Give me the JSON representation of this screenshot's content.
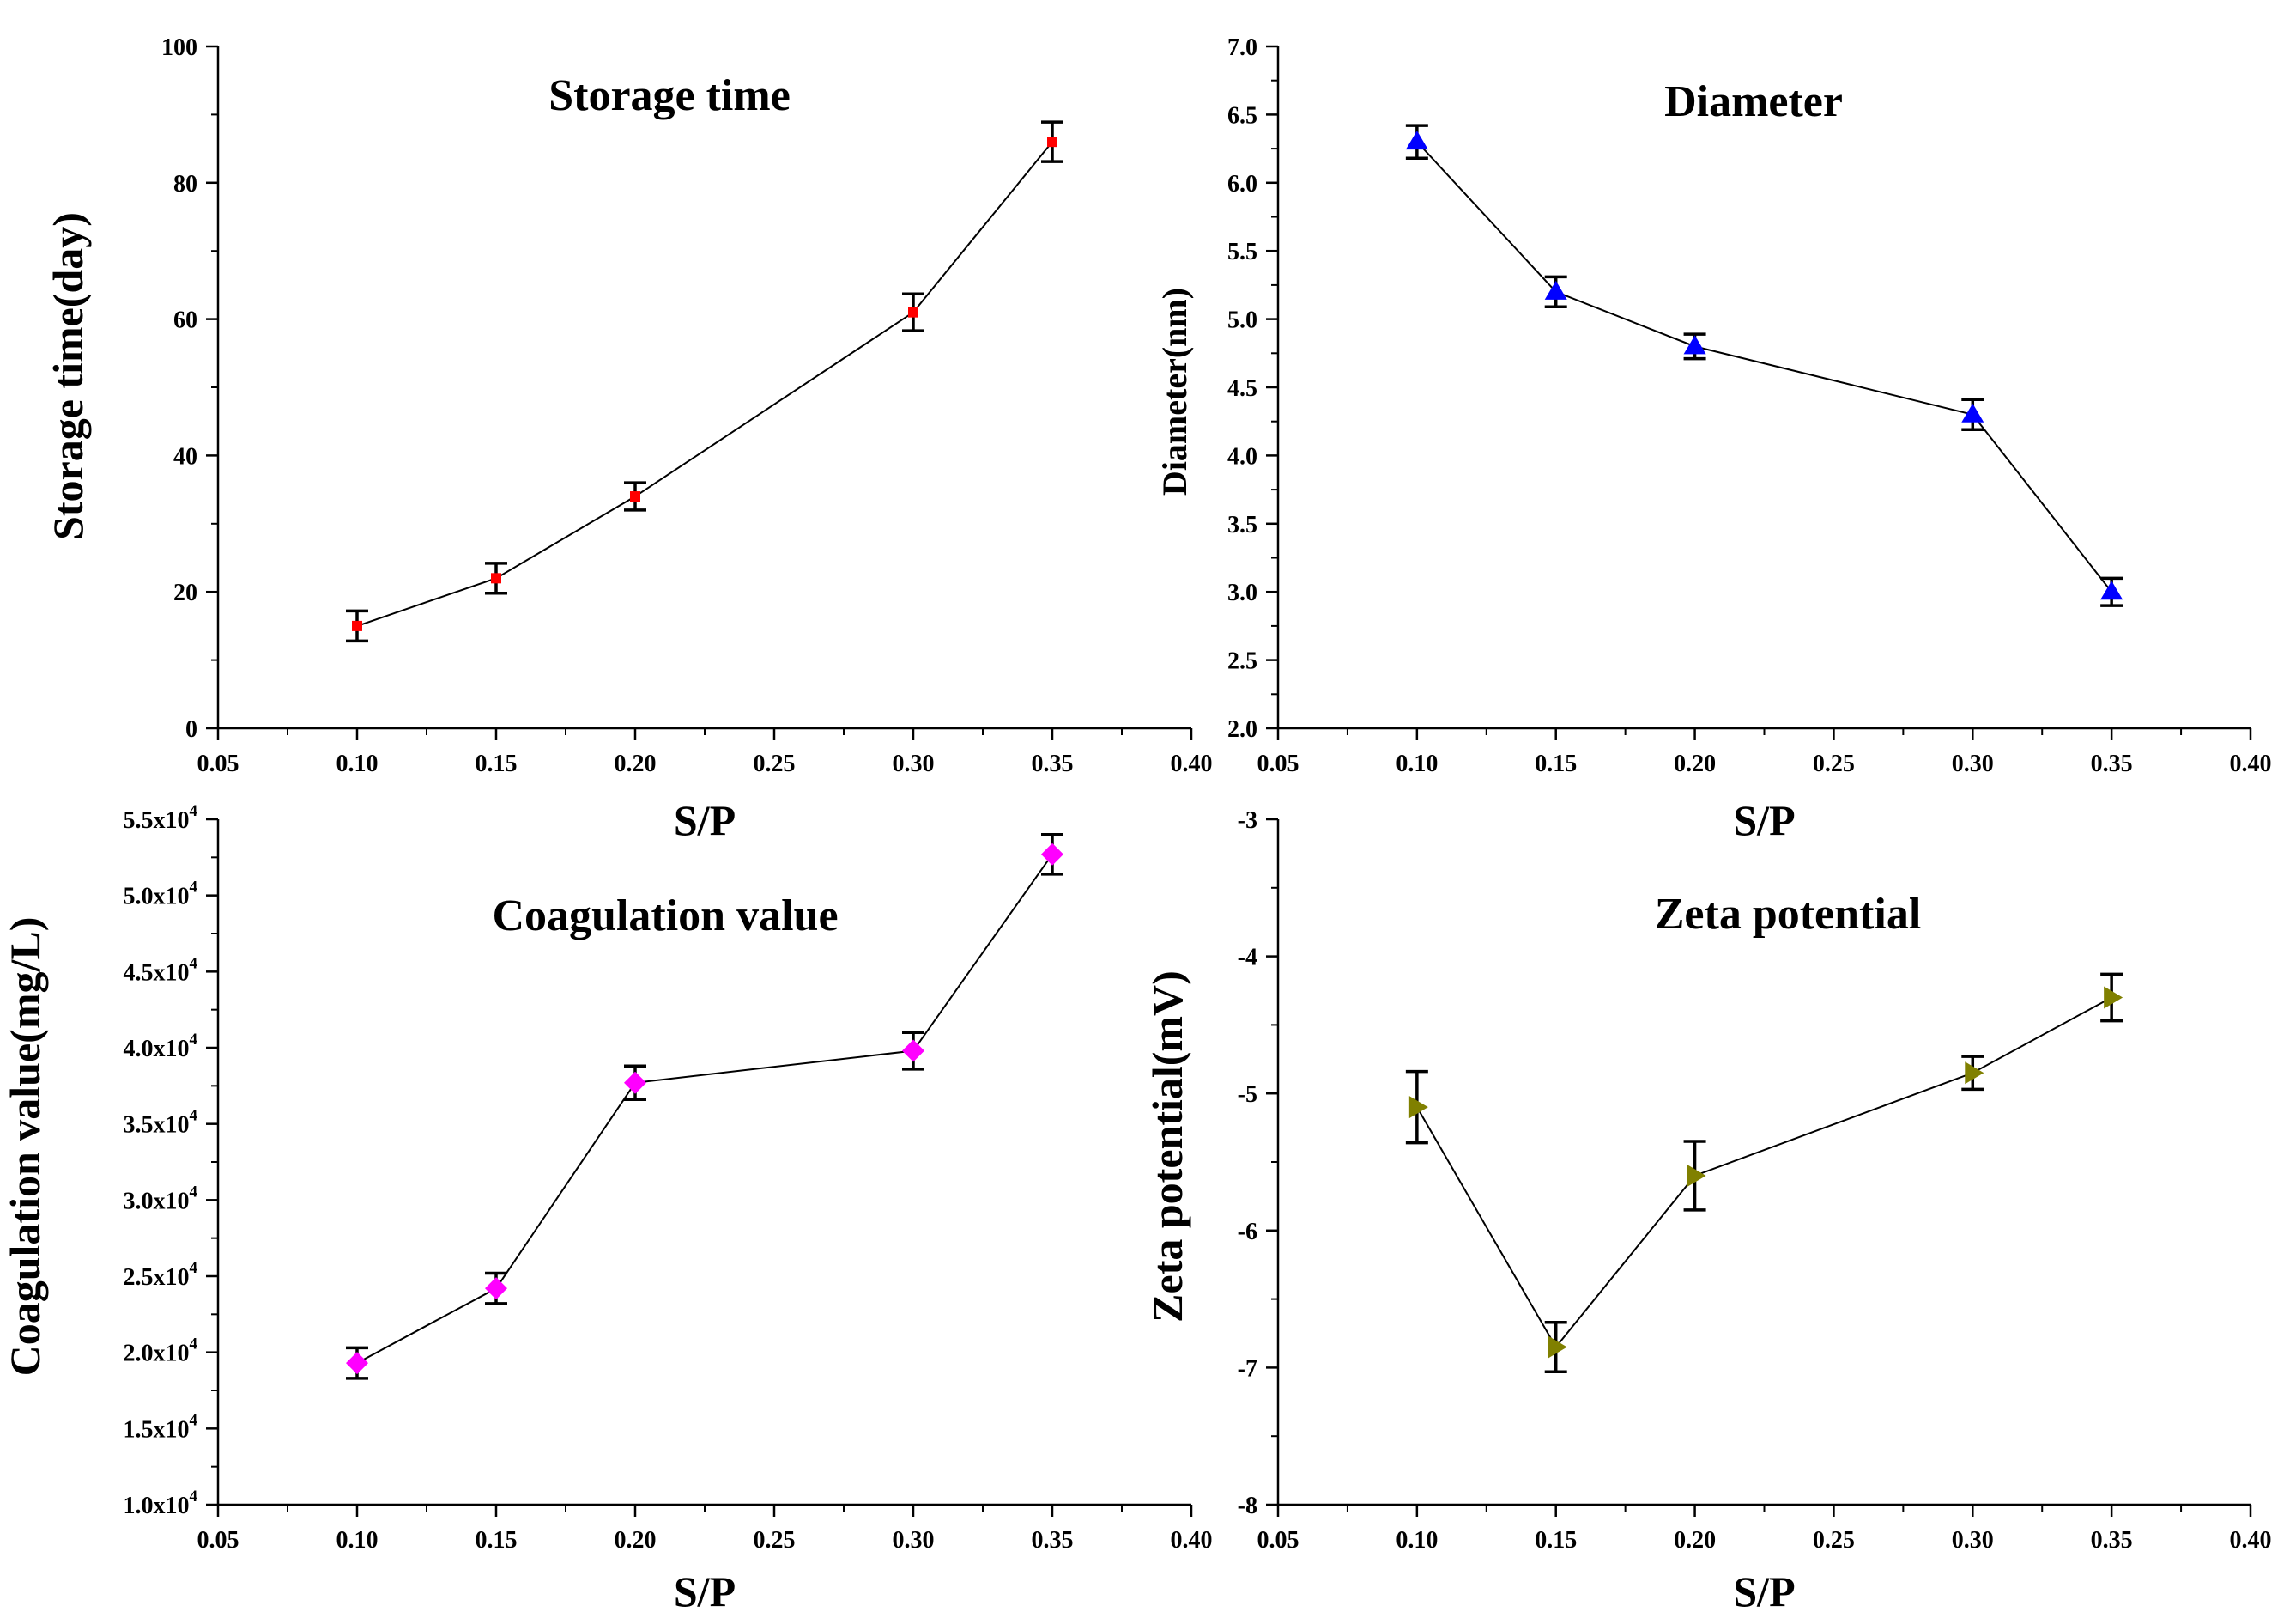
{
  "chart_data": [
    {
      "type": "line",
      "title": "Storage time",
      "xlabel": "S/P",
      "ylabel": "Storage time(day)",
      "xlim": [
        0.05,
        0.4
      ],
      "ylim": [
        0,
        100
      ],
      "xticks": [
        "0.05",
        "0.10",
        "0.15",
        "0.20",
        "0.25",
        "0.30",
        "0.35",
        "0.40"
      ],
      "yticks": [
        "0",
        "20",
        "40",
        "60",
        "80",
        "100"
      ],
      "series": [
        {
          "marker": "square",
          "color": "#ff0000",
          "x": [
            0.1,
            0.15,
            0.2,
            0.3,
            0.35
          ],
          "y": [
            15,
            22,
            34,
            61,
            86
          ],
          "error": [
            2.2,
            2.2,
            2.0,
            2.7,
            2.9
          ]
        }
      ],
      "grid": false
    },
    {
      "type": "line",
      "title": "Diameter",
      "xlabel": "S/P",
      "ylabel": "Diameter(nm)",
      "xlim": [
        0.05,
        0.4
      ],
      "ylim": [
        2.0,
        7.0
      ],
      "xticks": [
        "0.05",
        "0.10",
        "0.15",
        "0.20",
        "0.25",
        "0.30",
        "0.35",
        "0.40"
      ],
      "yticks": [
        "2.0",
        "2.5",
        "3.0",
        "3.5",
        "4.0",
        "4.5",
        "5.0",
        "5.5",
        "6.0",
        "6.5",
        "7.0"
      ],
      "series": [
        {
          "marker": "triangle-up",
          "color": "#0000ff",
          "x": [
            0.1,
            0.15,
            0.2,
            0.3,
            0.35
          ],
          "y": [
            6.3,
            5.2,
            4.8,
            4.3,
            3.0
          ],
          "error": [
            0.12,
            0.11,
            0.09,
            0.11,
            0.1
          ]
        }
      ],
      "grid": false
    },
    {
      "type": "line",
      "title": "Coagulation value",
      "xlabel": "S/P",
      "ylabel": "Coagulation value(mg/L)",
      "xlim": [
        0.05,
        0.4
      ],
      "ylim": [
        10000,
        55000
      ],
      "xticks": [
        "0.05",
        "0.10",
        "0.15",
        "0.20",
        "0.25",
        "0.30",
        "0.35",
        "0.40"
      ],
      "yticks": [
        {
          "mantissa": "1.0x10",
          "exp": "4"
        },
        {
          "mantissa": "1.5x10",
          "exp": "4"
        },
        {
          "mantissa": "2.0x10",
          "exp": "4"
        },
        {
          "mantissa": "2.5x10",
          "exp": "4"
        },
        {
          "mantissa": "3.0x10",
          "exp": "4"
        },
        {
          "mantissa": "3.5x10",
          "exp": "4"
        },
        {
          "mantissa": "4.0x10",
          "exp": "4"
        },
        {
          "mantissa": "4.5x10",
          "exp": "4"
        },
        {
          "mantissa": "5.0x10",
          "exp": "4"
        },
        {
          "mantissa": "5.5x10",
          "exp": "4"
        }
      ],
      "series": [
        {
          "marker": "diamond",
          "color": "#ff00ff",
          "x": [
            0.1,
            0.15,
            0.2,
            0.3,
            0.35
          ],
          "y": [
            19300,
            24200,
            37700,
            39800,
            52700
          ],
          "error": [
            1000,
            1000,
            1100,
            1200,
            1300
          ]
        }
      ],
      "grid": false
    },
    {
      "type": "line",
      "title": "Zeta potential",
      "xlabel": "S/P",
      "ylabel": "Zeta potential(mV)",
      "xlim": [
        0.05,
        0.4
      ],
      "ylim": [
        -8,
        -3
      ],
      "xticks": [
        "0.05",
        "0.10",
        "0.15",
        "0.20",
        "0.25",
        "0.30",
        "0.35",
        "0.40"
      ],
      "yticks": [
        "-8",
        "-7",
        "-6",
        "-5",
        "-4",
        "-3"
      ],
      "series": [
        {
          "marker": "triangle-right",
          "color": "#808000",
          "x": [
            0.1,
            0.15,
            0.2,
            0.3,
            0.35
          ],
          "y": [
            -5.1,
            -6.85,
            -5.6,
            -4.85,
            -4.3
          ],
          "error": [
            0.26,
            0.18,
            0.25,
            0.12,
            0.17
          ]
        }
      ],
      "grid": false
    }
  ]
}
